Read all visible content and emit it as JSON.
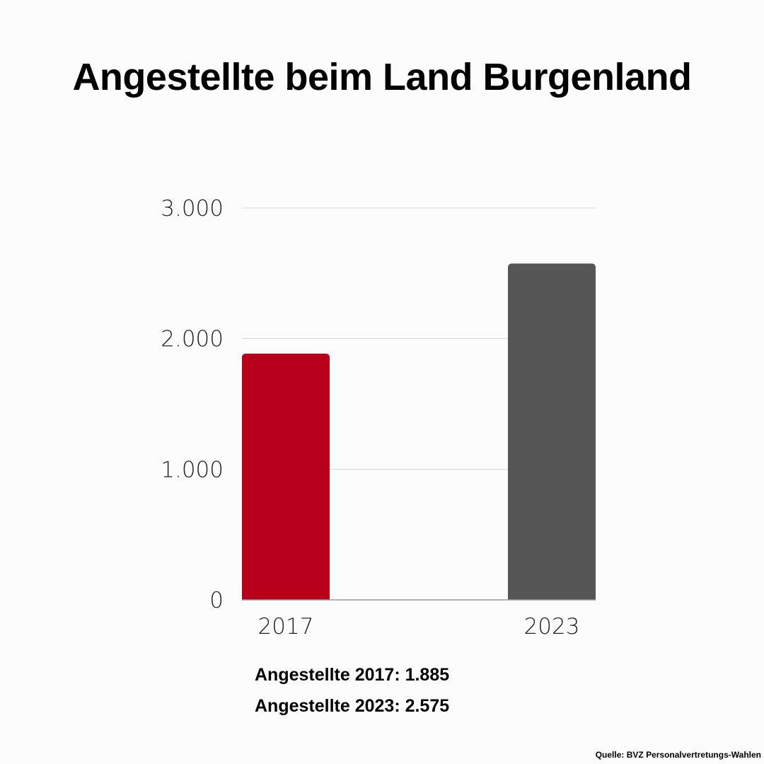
{
  "title": "Angestellte beim Land Burgenland",
  "chart_data": {
    "type": "bar",
    "categories": [
      "2017",
      "2023"
    ],
    "values": [
      1885,
      2575
    ],
    "bar_colors": [
      "#b8001a",
      "#555555"
    ],
    "ylim": [
      0,
      3000
    ],
    "yticks": [
      0,
      1000,
      2000,
      3000
    ],
    "ytick_labels": [
      "0",
      "1.000",
      "2.000",
      "3.000"
    ],
    "grid": true,
    "title": "",
    "xlabel": "",
    "ylabel": ""
  },
  "notes": [
    "Angestellte 2017: 1.885",
    "Angestellte 2023: 2.575"
  ],
  "source": "Quelle: BVZ Personalvertretungs-Wahlen"
}
